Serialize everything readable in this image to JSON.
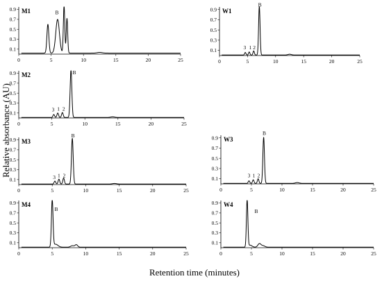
{
  "figure": {
    "ylabel": "Relative absorbance (AU)",
    "xlabel": "Retention time (minutes)"
  },
  "chart_data": [
    {
      "type": "line",
      "name": "M1",
      "xlim": [
        0,
        25
      ],
      "ylim": [
        0,
        0.95
      ],
      "xticks": [
        0,
        5,
        10,
        15,
        20,
        25
      ],
      "yticks": [
        0.1,
        0.3,
        0.5,
        0.7,
        0.9
      ],
      "baseline": 0.02,
      "peaks": [
        {
          "x": 4.5,
          "y": 0.58,
          "w": 0.15
        },
        {
          "x": 6.0,
          "y": 0.68,
          "w": 0.28
        },
        {
          "x": 7.0,
          "y": 0.95,
          "w": 0.11
        },
        {
          "x": 7.45,
          "y": 0.7,
          "w": 0.11
        },
        {
          "x": 12.5,
          "y": 0.015,
          "w": 0.4
        }
      ],
      "peak_labels": [
        {
          "text": "B",
          "x": 5.9,
          "y": 0.8
        }
      ]
    },
    {
      "type": "line",
      "name": "M2",
      "xlim": [
        0,
        25
      ],
      "ylim": [
        0,
        0.95
      ],
      "xticks": [
        0,
        5,
        10,
        15,
        20,
        25
      ],
      "yticks": [
        0.1,
        0.3,
        0.5,
        0.7,
        0.9
      ],
      "baseline": 0.01,
      "peaks": [
        {
          "x": 5.3,
          "y": 0.06,
          "w": 0.12
        },
        {
          "x": 5.9,
          "y": 0.09,
          "w": 0.12
        },
        {
          "x": 6.6,
          "y": 0.1,
          "w": 0.12
        },
        {
          "x": 7.9,
          "y": 0.95,
          "w": 0.13
        },
        {
          "x": 14.2,
          "y": 0.012,
          "w": 0.3
        }
      ],
      "peak_labels": [
        {
          "text": "3",
          "x": 5.2,
          "y": 0.13
        },
        {
          "text": "1",
          "x": 6.0,
          "y": 0.15
        },
        {
          "text": "2",
          "x": 6.8,
          "y": 0.15
        },
        {
          "text": "B",
          "x": 8.4,
          "y": 0.88
        }
      ]
    },
    {
      "type": "line",
      "name": "M3",
      "xlim": [
        0,
        25
      ],
      "ylim": [
        0,
        0.95
      ],
      "xticks": [
        0,
        5,
        10,
        15,
        20,
        25
      ],
      "yticks": [
        0.1,
        0.3,
        0.5,
        0.7,
        0.9
      ],
      "baseline": 0.01,
      "peaks": [
        {
          "x": 5.4,
          "y": 0.06,
          "w": 0.12
        },
        {
          "x": 6.0,
          "y": 0.1,
          "w": 0.12
        },
        {
          "x": 6.7,
          "y": 0.12,
          "w": 0.12
        },
        {
          "x": 8.0,
          "y": 0.92,
          "w": 0.13
        },
        {
          "x": 14.3,
          "y": 0.012,
          "w": 0.3
        }
      ],
      "peak_labels": [
        {
          "text": "3",
          "x": 5.3,
          "y": 0.11
        },
        {
          "text": "1",
          "x": 6.0,
          "y": 0.15
        },
        {
          "text": "2",
          "x": 6.8,
          "y": 0.15
        },
        {
          "text": "B",
          "x": 8.1,
          "y": 0.95
        }
      ]
    },
    {
      "type": "line",
      "name": "M4",
      "xlim": [
        0,
        25
      ],
      "ylim": [
        0,
        0.95
      ],
      "xticks": [
        0,
        5,
        10,
        15,
        20,
        25
      ],
      "yticks": [
        0.1,
        0.3,
        0.5,
        0.7,
        0.9
      ],
      "baseline": 0.01,
      "peaks": [
        {
          "x": 5.0,
          "y": 0.94,
          "w": 0.12
        },
        {
          "x": 5.5,
          "y": 0.06,
          "w": 0.35
        },
        {
          "x": 8.0,
          "y": 0.03,
          "w": 0.25
        },
        {
          "x": 8.6,
          "y": 0.05,
          "w": 0.2
        }
      ],
      "peak_labels": [
        {
          "text": "B",
          "x": 5.6,
          "y": 0.74
        }
      ]
    },
    {
      "type": "line",
      "name": "W1",
      "xlim": [
        0,
        25
      ],
      "ylim": [
        0,
        0.95
      ],
      "xticks": [
        0,
        5,
        10,
        15,
        20,
        25
      ],
      "yticks": [
        0.1,
        0.3,
        0.5,
        0.7,
        0.9
      ],
      "baseline": 0.01,
      "peaks": [
        {
          "x": 4.6,
          "y": 0.05,
          "w": 0.12
        },
        {
          "x": 5.3,
          "y": 0.06,
          "w": 0.12
        },
        {
          "x": 6.1,
          "y": 0.08,
          "w": 0.12
        },
        {
          "x": 7.1,
          "y": 0.95,
          "w": 0.13
        },
        {
          "x": 12.5,
          "y": 0.015,
          "w": 0.3
        }
      ],
      "peak_labels": [
        {
          "text": "3",
          "x": 4.5,
          "y": 0.12
        },
        {
          "text": "1",
          "x": 5.5,
          "y": 0.12
        },
        {
          "text": "2",
          "x": 6.2,
          "y": 0.12
        },
        {
          "text": "B",
          "x": 7.2,
          "y": 0.96
        }
      ]
    },
    {
      "type": "line",
      "name": "W3",
      "xlim": [
        0,
        25
      ],
      "ylim": [
        0,
        0.95
      ],
      "xticks": [
        0,
        5,
        10,
        15,
        20,
        25
      ],
      "yticks": [
        0.1,
        0.3,
        0.5,
        0.7,
        0.9
      ],
      "baseline": 0.01,
      "peaks": [
        {
          "x": 4.6,
          "y": 0.05,
          "w": 0.12
        },
        {
          "x": 5.3,
          "y": 0.07,
          "w": 0.12
        },
        {
          "x": 6.1,
          "y": 0.09,
          "w": 0.12
        },
        {
          "x": 7.0,
          "y": 0.9,
          "w": 0.13
        },
        {
          "x": 12.5,
          "y": 0.015,
          "w": 0.3
        }
      ],
      "peak_labels": [
        {
          "text": "3",
          "x": 4.6,
          "y": 0.13
        },
        {
          "text": "1",
          "x": 5.4,
          "y": 0.13
        },
        {
          "text": "2",
          "x": 6.2,
          "y": 0.13
        },
        {
          "text": "B",
          "x": 7.1,
          "y": 0.96
        }
      ]
    },
    {
      "type": "line",
      "name": "W4",
      "xlim": [
        0,
        25
      ],
      "ylim": [
        0,
        0.95
      ],
      "xticks": [
        0,
        5,
        10,
        15,
        20,
        25
      ],
      "yticks": [
        0.1,
        0.3,
        0.5,
        0.7,
        0.9
      ],
      "baseline": 0.01,
      "peaks": [
        {
          "x": 4.3,
          "y": 0.95,
          "w": 0.12
        },
        {
          "x": 4.8,
          "y": 0.04,
          "w": 0.3
        },
        {
          "x": 6.3,
          "y": 0.07,
          "w": 0.25
        },
        {
          "x": 6.9,
          "y": 0.03,
          "w": 0.3
        }
      ],
      "peak_labels": [
        {
          "text": "B",
          "x": 5.8,
          "y": 0.7
        }
      ]
    }
  ]
}
